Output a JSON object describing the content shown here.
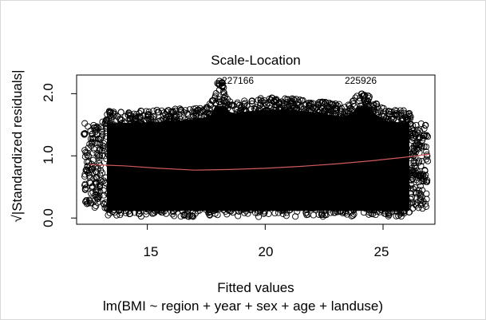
{
  "chart_data": {
    "type": "scatter",
    "title": "Scale-Location",
    "xlabel": "Fitted values",
    "ylabel": "√|Standardized residuals|",
    "subtitle": "lm(BMI ~ region + year + sex + age + landuse)",
    "xlim": [
      12,
      27.2
    ],
    "ylim": [
      -0.1,
      2.3
    ],
    "x_ticks": [
      "15",
      "20",
      "25"
    ],
    "x_tick_values": [
      15,
      20,
      25
    ],
    "y_ticks": [
      "0.0",
      "1.0",
      "2.0"
    ],
    "y_tick_values": [
      0.0,
      1.0,
      2.0
    ],
    "grid": false,
    "point_shape": "open-circle",
    "point_color": "#000000",
    "smooth_color": "#d05a5a",
    "smooth_line": {
      "x": [
        12.5,
        14,
        15.5,
        17,
        18.5,
        20,
        21.5,
        23,
        24.5,
        26,
        27
      ],
      "y": [
        0.86,
        0.84,
        0.8,
        0.77,
        0.78,
        0.8,
        0.83,
        0.87,
        0.92,
        0.98,
        1.03
      ]
    },
    "annotations": [
      {
        "label": "227166",
        "x": 18.0,
        "y": 2.2
      },
      {
        "label": "225926",
        "x": 23.7,
        "y": 2.2
      }
    ]
  }
}
